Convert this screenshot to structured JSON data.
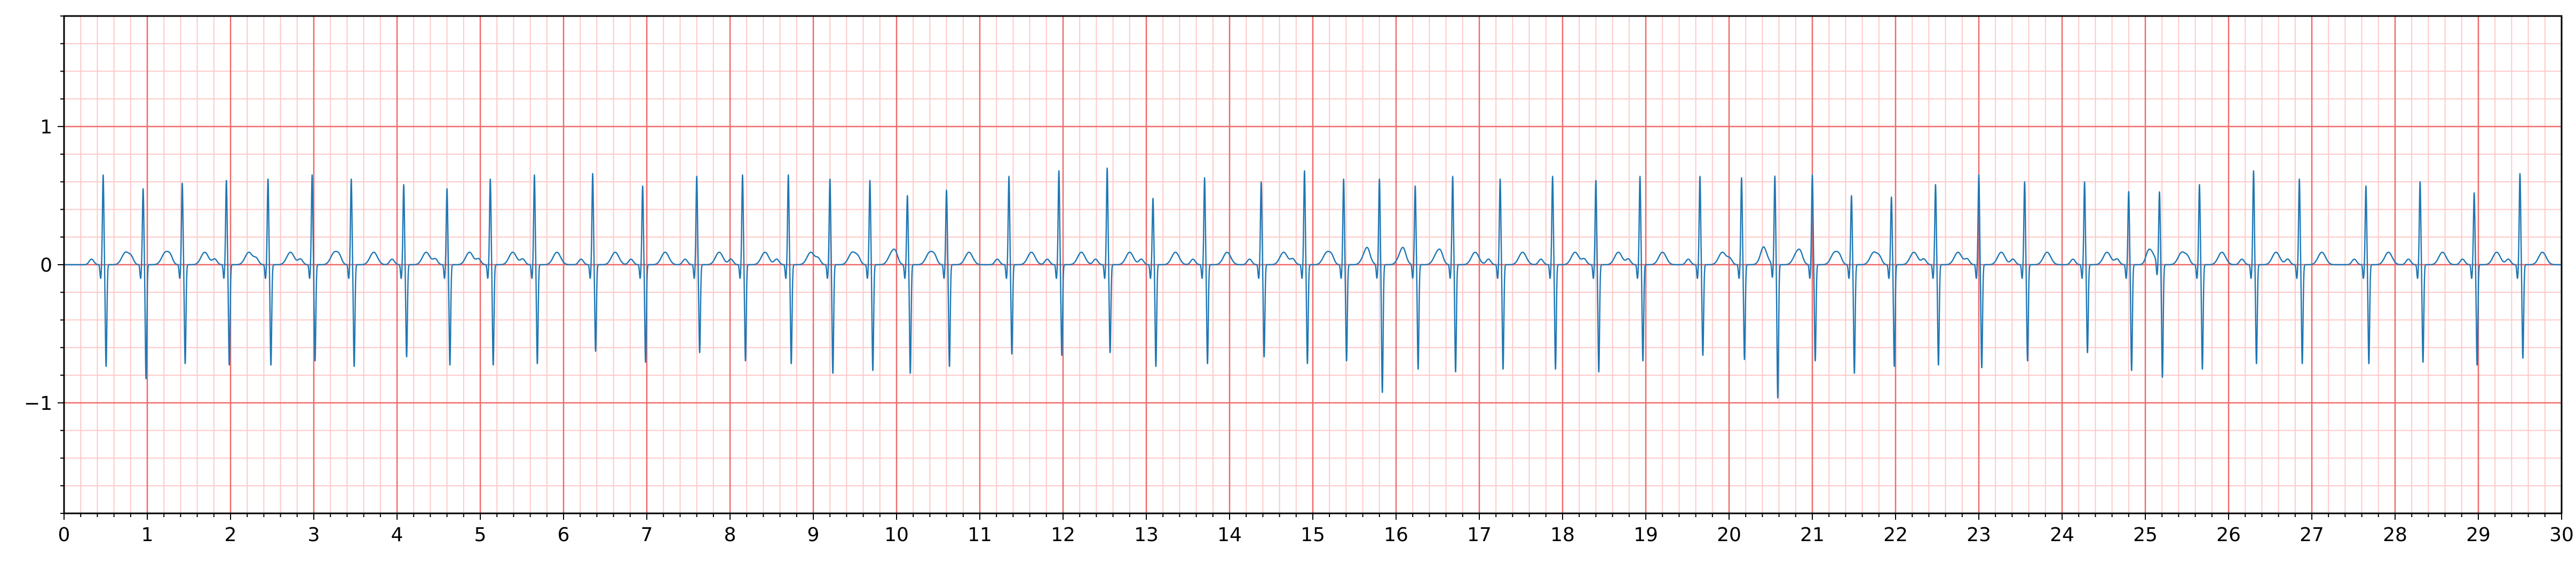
{
  "chart_data": {
    "type": "line",
    "title": "",
    "xlabel": "",
    "ylabel": "",
    "xlim": [
      0,
      30
    ],
    "ylim": [
      -1.8,
      1.8
    ],
    "x_ticks": [
      0,
      1,
      2,
      3,
      4,
      5,
      6,
      7,
      8,
      9,
      10,
      11,
      12,
      13,
      14,
      15,
      16,
      17,
      18,
      19,
      20,
      21,
      22,
      23,
      24,
      25,
      26,
      27,
      28,
      29,
      30
    ],
    "x_tick_labels": [
      "0",
      "1",
      "2",
      "3",
      "4",
      "5",
      "6",
      "7",
      "8",
      "9",
      "10",
      "11",
      "12",
      "13",
      "14",
      "15",
      "16",
      "17",
      "18",
      "19",
      "20",
      "21",
      "22",
      "23",
      "24",
      "25",
      "26",
      "27",
      "28",
      "29",
      "30"
    ],
    "y_ticks": [
      -1,
      0,
      1
    ],
    "y_tick_labels": [
      "−1",
      "0",
      "1"
    ],
    "grid": {
      "major_x_step": 1,
      "major_y_step": 1,
      "minor_x_step": 0.2,
      "minor_y_step": 0.2,
      "major_color": "#f06a6a",
      "minor_color": "#ffc8c8"
    },
    "trace_color": "#1f77b4",
    "series": [
      {
        "name": "",
        "beats": [
          {
            "t": 0.47,
            "r": 0.6,
            "s": -0.74
          },
          {
            "t": 0.95,
            "r": 0.5,
            "s": -0.83
          },
          {
            "t": 1.42,
            "r": 0.54,
            "s": -0.72
          },
          {
            "t": 1.95,
            "r": 0.56,
            "s": -0.73
          },
          {
            "t": 2.45,
            "r": 0.57,
            "s": -0.73
          },
          {
            "t": 2.98,
            "r": 0.6,
            "s": -0.7
          },
          {
            "t": 3.45,
            "r": 0.57,
            "s": -0.74
          },
          {
            "t": 4.08,
            "r": 0.53,
            "s": -0.67
          },
          {
            "t": 4.6,
            "r": 0.5,
            "s": -0.73
          },
          {
            "t": 5.12,
            "r": 0.57,
            "s": -0.73
          },
          {
            "t": 5.65,
            "r": 0.6,
            "s": -0.72
          },
          {
            "t": 6.35,
            "r": 0.61,
            "s": -0.63
          },
          {
            "t": 6.95,
            "r": 0.52,
            "s": -0.71
          },
          {
            "t": 7.6,
            "r": 0.59,
            "s": -0.64
          },
          {
            "t": 8.15,
            "r": 0.6,
            "s": -0.7
          },
          {
            "t": 8.7,
            "r": 0.6,
            "s": -0.72
          },
          {
            "t": 9.2,
            "r": 0.57,
            "s": -0.79
          },
          {
            "t": 9.68,
            "r": 0.56,
            "s": -0.77
          },
          {
            "t": 10.13,
            "r": 0.45,
            "s": -0.79
          },
          {
            "t": 10.6,
            "r": 0.49,
            "s": -0.74
          },
          {
            "t": 11.35,
            "r": 0.59,
            "s": -0.65
          },
          {
            "t": 11.95,
            "r": 0.63,
            "s": -0.66
          },
          {
            "t": 12.53,
            "r": 0.65,
            "s": -0.64
          },
          {
            "t": 13.08,
            "r": 0.43,
            "s": -0.74
          },
          {
            "t": 13.7,
            "r": 0.58,
            "s": -0.72
          },
          {
            "t": 14.38,
            "r": 0.55,
            "s": -0.67
          },
          {
            "t": 14.9,
            "r": 0.63,
            "s": -0.72
          },
          {
            "t": 15.37,
            "r": 0.57,
            "s": -0.7
          },
          {
            "t": 15.8,
            "r": 0.57,
            "s": -0.93
          },
          {
            "t": 16.23,
            "r": 0.52,
            "s": -0.76
          },
          {
            "t": 16.68,
            "r": 0.59,
            "s": -0.78
          },
          {
            "t": 17.25,
            "r": 0.57,
            "s": -0.76
          },
          {
            "t": 17.88,
            "r": 0.59,
            "s": -0.76
          },
          {
            "t": 18.4,
            "r": 0.56,
            "s": -0.78
          },
          {
            "t": 18.93,
            "r": 0.59,
            "s": -0.7
          },
          {
            "t": 19.65,
            "r": 0.59,
            "s": -0.66
          },
          {
            "t": 20.15,
            "r": 0.58,
            "s": -0.69
          },
          {
            "t": 20.55,
            "r": 0.59,
            "s": -0.97
          },
          {
            "t": 21.0,
            "r": 0.6,
            "s": -0.7
          },
          {
            "t": 21.47,
            "r": 0.45,
            "s": -0.79
          },
          {
            "t": 21.95,
            "r": 0.44,
            "s": -0.74
          },
          {
            "t": 22.48,
            "r": 0.53,
            "s": -0.73
          },
          {
            "t": 23.0,
            "r": 0.6,
            "s": -0.75
          },
          {
            "t": 23.55,
            "r": 0.55,
            "s": -0.7
          },
          {
            "t": 24.27,
            "r": 0.55,
            "s": -0.64
          },
          {
            "t": 24.8,
            "r": 0.48,
            "s": -0.77
          },
          {
            "t": 25.17,
            "r": 0.47,
            "s": -0.82
          },
          {
            "t": 25.65,
            "r": 0.53,
            "s": -0.76
          },
          {
            "t": 26.3,
            "r": 0.63,
            "s": -0.72
          },
          {
            "t": 26.85,
            "r": 0.57,
            "s": -0.72
          },
          {
            "t": 27.65,
            "r": 0.52,
            "s": -0.72
          },
          {
            "t": 28.3,
            "r": 0.55,
            "s": -0.71
          },
          {
            "t": 28.95,
            "r": 0.47,
            "s": -0.73
          },
          {
            "t": 29.5,
            "r": 0.61,
            "s": -0.68
          }
        ]
      }
    ]
  }
}
